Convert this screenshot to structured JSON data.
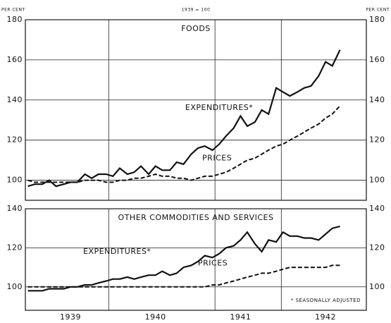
{
  "header": {
    "left_unit": "PER CENT",
    "base": "1939 = 100",
    "right_unit": "PER CENT"
  },
  "xticks": [
    {
      "value": 1939.5,
      "label": "1939"
    },
    {
      "value": 1940.5,
      "label": "1940"
    },
    {
      "value": 1941.5,
      "label": "1941"
    },
    {
      "value": 1942.5,
      "label": "1942"
    }
  ],
  "xlim": [
    1938.97,
    1942.98
  ],
  "chart_data": [
    {
      "type": "line",
      "title": "FOODS",
      "ylim": [
        90,
        180
      ],
      "yticks": [
        100,
        120,
        140,
        160,
        180
      ],
      "grid": true,
      "xgrid": [
        1939.95,
        1941.2,
        1941.98
      ],
      "x": [
        1939.0,
        1939.08,
        1939.17,
        1939.25,
        1939.33,
        1939.42,
        1939.5,
        1939.58,
        1939.67,
        1939.75,
        1939.83,
        1939.92,
        1940.0,
        1940.08,
        1940.17,
        1940.25,
        1940.33,
        1940.42,
        1940.5,
        1940.58,
        1940.67,
        1940.75,
        1940.83,
        1940.92,
        1941.0,
        1941.08,
        1941.17,
        1941.25,
        1941.33,
        1941.42,
        1941.5,
        1941.58,
        1941.67,
        1941.75,
        1941.83,
        1941.92,
        1942.0,
        1942.08,
        1942.17,
        1942.25,
        1942.33,
        1942.42,
        1942.5,
        1942.58,
        1942.67
      ],
      "series": [
        {
          "name": "EXPENDITURES*",
          "color": "#111",
          "dash": false,
          "values": [
            97,
            98,
            98,
            100,
            97,
            98,
            99,
            99,
            103,
            101,
            103,
            103,
            102,
            106,
            103,
            104,
            107,
            103,
            107,
            105,
            105,
            109,
            108,
            113,
            116,
            117,
            115,
            118,
            122,
            126,
            132,
            127,
            129,
            135,
            133,
            146,
            144,
            142,
            144,
            146,
            147,
            152,
            159,
            157,
            165
          ]
        },
        {
          "name": "PRICES",
          "color": "#111",
          "dash": true,
          "values": [
            100,
            99,
            99,
            99,
            99,
            99,
            99,
            99,
            100,
            100,
            100,
            99,
            99,
            100,
            100,
            101,
            101,
            102,
            103,
            102,
            102,
            101,
            101,
            100,
            101,
            102,
            102,
            103,
            104,
            106,
            108,
            110,
            111,
            113,
            115,
            117,
            118,
            120,
            122,
            124,
            126,
            128,
            131,
            133,
            137
          ]
        }
      ]
    },
    {
      "type": "line",
      "title": "OTHER COMMODITIES AND SERVICES",
      "ylim": [
        88,
        140
      ],
      "yticks": [
        100,
        120,
        140
      ],
      "grid": true,
      "xgrid": [
        1939.95,
        1941.2,
        1941.98
      ],
      "note": "* SEASONALLY ADJUSTED",
      "x": [
        1939.0,
        1939.08,
        1939.17,
        1939.25,
        1939.33,
        1939.42,
        1939.5,
        1939.58,
        1939.67,
        1939.75,
        1939.83,
        1939.92,
        1940.0,
        1940.08,
        1940.17,
        1940.25,
        1940.33,
        1940.42,
        1940.5,
        1940.58,
        1940.67,
        1940.75,
        1940.83,
        1940.92,
        1941.0,
        1941.08,
        1941.17,
        1941.25,
        1941.33,
        1941.42,
        1941.5,
        1941.58,
        1941.67,
        1941.75,
        1941.83,
        1941.92,
        1942.0,
        1942.08,
        1942.17,
        1942.25,
        1942.33,
        1942.42,
        1942.5,
        1942.58,
        1942.67
      ],
      "series": [
        {
          "name": "EXPENDITURES*",
          "color": "#111",
          "dash": false,
          "values": [
            98,
            98,
            98,
            99,
            99,
            99,
            100,
            100,
            101,
            101,
            102,
            103,
            104,
            104,
            105,
            104,
            105,
            106,
            106,
            108,
            106,
            107,
            110,
            111,
            113,
            116,
            115,
            117,
            120,
            121,
            124,
            128,
            122,
            118,
            124,
            123,
            128,
            126,
            126,
            125,
            125,
            124,
            127,
            130,
            131
          ]
        },
        {
          "name": "PRICES",
          "color": "#111",
          "dash": true,
          "values": [
            100,
            100,
            100,
            100,
            100,
            100,
            100,
            100,
            100,
            100,
            100,
            100,
            100,
            100,
            100,
            100,
            100,
            100,
            100,
            100,
            100,
            100,
            100,
            100,
            100,
            100,
            101,
            101,
            102,
            103,
            104,
            105,
            106,
            107,
            107,
            108,
            109,
            110,
            110,
            110,
            110,
            110,
            110,
            111,
            111
          ]
        }
      ]
    }
  ]
}
